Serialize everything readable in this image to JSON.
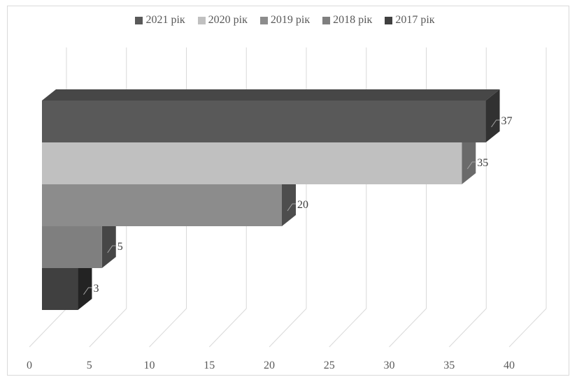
{
  "chart_data": {
    "type": "bar",
    "orientation": "horizontal",
    "style": "3d",
    "title": "",
    "xlabel": "",
    "ylabel": "",
    "xlim": [
      0,
      40
    ],
    "ticks": [
      "0",
      "5",
      "10",
      "15",
      "20",
      "25",
      "30",
      "35",
      "40"
    ],
    "grid": true,
    "legend_position": "top",
    "series": [
      {
        "name": "2021 рік",
        "value": 37,
        "label": "37",
        "color": "#595959"
      },
      {
        "name": "2020 рік",
        "value": 35,
        "label": "35",
        "color": "#c0c0c0"
      },
      {
        "name": "2019 рік",
        "value": 20,
        "label": "20",
        "color": "#8c8c8c"
      },
      {
        "name": "2018 рік",
        "value": 5,
        "label": "5",
        "color": "#7f7f7f"
      },
      {
        "name": "2017 рік",
        "value": 3,
        "label": "3",
        "color": "#404040"
      }
    ]
  }
}
